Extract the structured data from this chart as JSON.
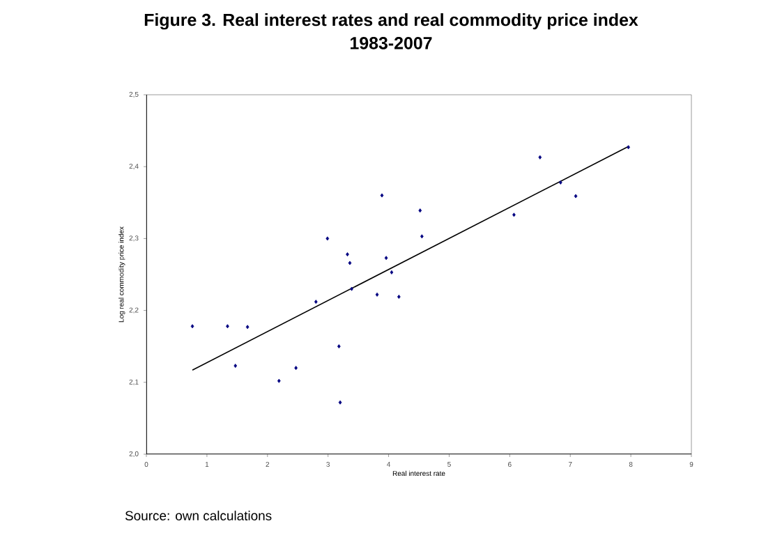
{
  "chart_data": {
    "type": "scatter",
    "title": "Figure 3. Real interest rates and real commodity price index",
    "subtitle": "1983-2007",
    "xlabel": "Real interest rate",
    "ylabel": "Log real commodity price index",
    "annotations": [
      "Source: own calculations"
    ],
    "xlim": [
      0,
      9
    ],
    "xticks": [
      0,
      1,
      2,
      3,
      4,
      5,
      6,
      7,
      8,
      9
    ],
    "ylim": [
      2.0,
      2.5
    ],
    "yticks": [
      {
        "value": 2.0,
        "label": "2,0"
      },
      {
        "value": 2.1,
        "label": "2,1"
      },
      {
        "value": 2.2,
        "label": "2,2"
      },
      {
        "value": 2.3,
        "label": "2,3"
      },
      {
        "value": 2.4,
        "label": "2,4"
      },
      {
        "value": 2.5,
        "label": "2,5"
      }
    ],
    "grid": false,
    "marker": "diamond",
    "series": [
      {
        "color": "#000080",
        "x": [
          0.76,
          1.34,
          1.67,
          1.47,
          2.19,
          2.47,
          2.8,
          2.99,
          3.18,
          3.2,
          3.32,
          3.36,
          3.39,
          3.81,
          3.89,
          3.96,
          4.05,
          4.17,
          4.52,
          4.55,
          6.07,
          6.5,
          6.84,
          7.09,
          7.96
        ],
        "values": [
          2.178,
          2.178,
          2.177,
          2.123,
          2.102,
          2.12,
          2.212,
          2.3,
          2.15,
          2.072,
          2.278,
          2.266,
          2.23,
          2.222,
          2.36,
          2.273,
          2.253,
          2.219,
          2.339,
          2.303,
          2.333,
          2.413,
          2.378,
          2.359,
          2.427
        ]
      },
      {
        "type": "line",
        "color": "#000000",
        "marker": "none",
        "x": [
          0.76,
          7.96
        ],
        "values": [
          2.117,
          2.428
        ]
      }
    ]
  }
}
